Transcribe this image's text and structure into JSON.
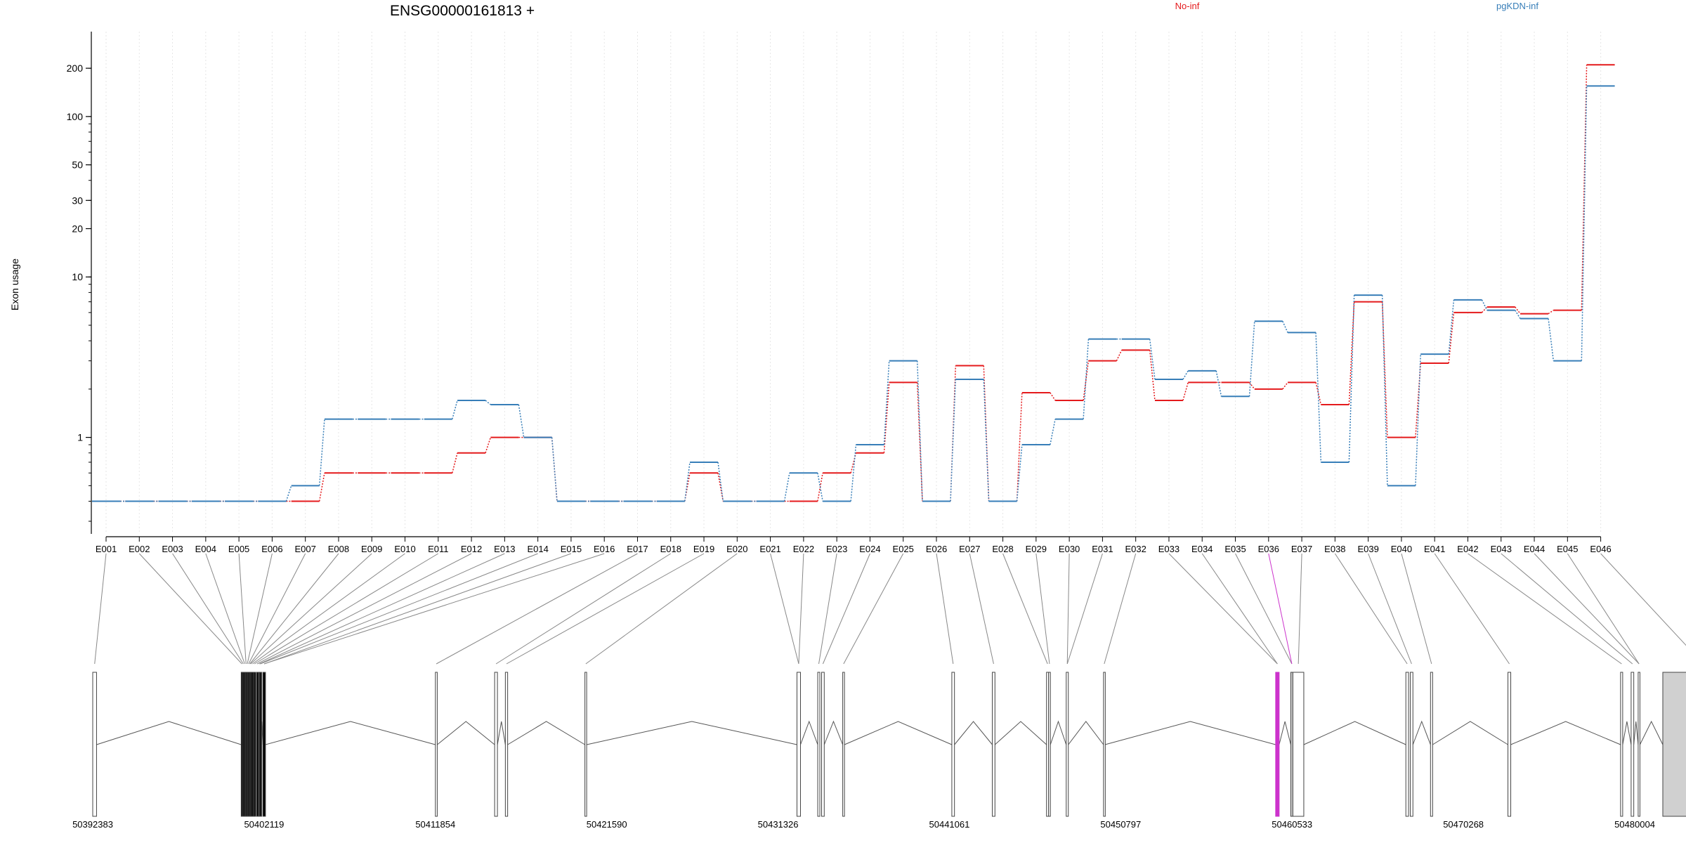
{
  "chart_data": {
    "type": "line",
    "title": "ENSG00000161813 +",
    "ylabel": "Exon usage",
    "yscale": "log",
    "ylim": [
      0.3,
      250
    ],
    "ytick_values": [
      1,
      10,
      20,
      30,
      50,
      100,
      200
    ],
    "ytick_labels": [
      "1",
      "10",
      "20",
      "30",
      "50",
      "100",
      "200"
    ],
    "grid": "vertical dotted lines at exons",
    "legend_placement": "top",
    "colors": {
      "no_inf": "#e41a1c",
      "pgkdn_inf": "#377eb8",
      "highlight": "#cc33cc",
      "exon_fill": "#d0d0d0"
    },
    "categories": [
      "E001",
      "E002",
      "E003",
      "E004",
      "E005",
      "E006",
      "E007",
      "E008",
      "E009",
      "E010",
      "E011",
      "E012",
      "E013",
      "E014",
      "E015",
      "E016",
      "E017",
      "E018",
      "E019",
      "E020",
      "E021",
      "E022",
      "E023",
      "E024",
      "E025",
      "E026",
      "E027",
      "E028",
      "E029",
      "E030",
      "E031",
      "E032",
      "E033",
      "E034",
      "E035",
      "E036",
      "E037",
      "E038",
      "E039",
      "E040",
      "E041",
      "E042",
      "E043",
      "E044",
      "E045",
      "E046"
    ],
    "series": [
      {
        "name": "No-inf",
        "color": "#e41a1c",
        "values": [
          0.4,
          0.4,
          0.4,
          0.4,
          0.4,
          0.4,
          0.4,
          0.6,
          0.6,
          0.6,
          0.6,
          0.8,
          1.0,
          1.0,
          0.4,
          0.4,
          0.4,
          0.4,
          0.6,
          0.4,
          0.4,
          0.4,
          0.6,
          0.8,
          2.2,
          0.4,
          2.8,
          0.4,
          1.9,
          1.7,
          3.0,
          3.5,
          1.7,
          2.2,
          2.2,
          2.0,
          2.2,
          1.6,
          7.0,
          1.0,
          2.9,
          6.0,
          6.5,
          5.9,
          6.2,
          210
        ]
      },
      {
        "name": "pgKDN-inf",
        "color": "#377eb8",
        "values": [
          0.4,
          0.4,
          0.4,
          0.4,
          0.4,
          0.4,
          0.5,
          1.3,
          1.3,
          1.3,
          1.3,
          1.7,
          1.6,
          1.0,
          0.4,
          0.4,
          0.4,
          0.4,
          0.7,
          0.4,
          0.4,
          0.6,
          0.4,
          0.9,
          3.0,
          0.4,
          2.3,
          0.4,
          0.9,
          1.3,
          4.1,
          4.1,
          2.3,
          2.6,
          1.8,
          5.3,
          4.5,
          0.7,
          7.7,
          0.5,
          3.3,
          7.2,
          6.2,
          5.5,
          3.0,
          155
        ]
      }
    ],
    "genomic_axis": {
      "tick_labels": [
        "50392383",
        "50402119",
        "50411854",
        "50421590",
        "50431326",
        "50441061",
        "50450797",
        "50460533",
        "50470268",
        "50480004"
      ],
      "range": [
        50392383,
        50480004
      ]
    }
  }
}
